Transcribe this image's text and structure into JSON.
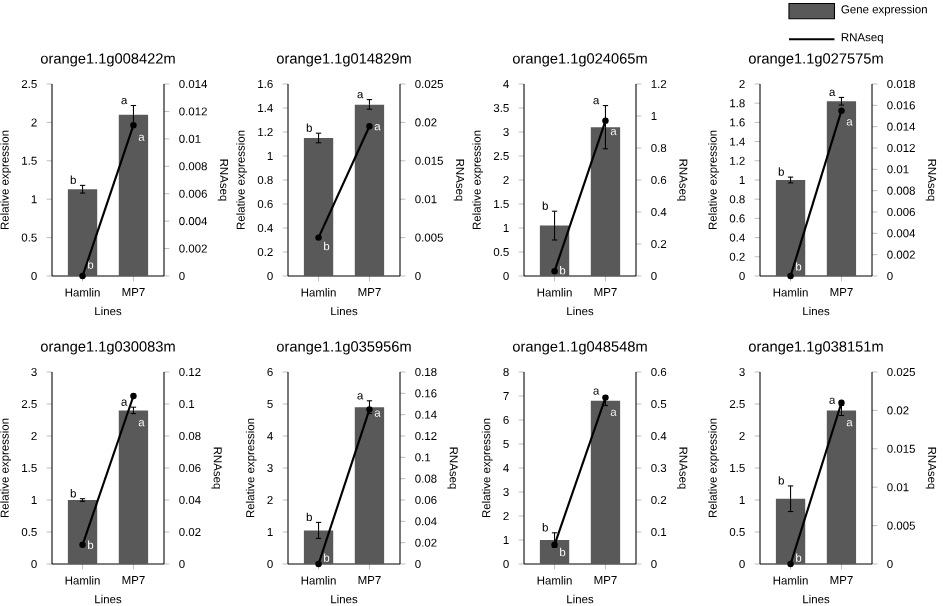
{
  "chart_data": [
    {
      "type": "bar",
      "title": "orange1.1g008422m",
      "categories": [
        "Hamlin",
        "MP7"
      ],
      "xlabel": "Lines",
      "ylabel": "Relative expression",
      "y2label": "RNAseq",
      "ylim": [
        0,
        2.5
      ],
      "yticks": [
        0,
        0.5,
        1,
        1.5,
        2,
        2.5
      ],
      "y2lim": [
        0,
        0.014
      ],
      "y2ticks": [
        0,
        0.002,
        0.004,
        0.006,
        0.008,
        0.01,
        0.012,
        0.014
      ],
      "marker": "circle",
      "series": [
        {
          "color": "#595959",
          "values": [
            1.13,
            2.1
          ],
          "errors": [
            0.05,
            0.12
          ]
        },
        {
          "type": "line",
          "axis": "y2",
          "color": "#000000",
          "values": [
            0,
            0.011
          ]
        }
      ],
      "annotations": [
        {
          "text": "b",
          "x": "Hamlin",
          "y": 1.18
        },
        {
          "text": "a",
          "x": "MP7",
          "y": 2.22
        },
        {
          "text": "b",
          "x": "Hamlin",
          "y": 0.15
        },
        {
          "text": "a",
          "x": "MP7",
          "y": 1.8
        }
      ]
    },
    {
      "type": "bar",
      "title": "orange1.1g014829m",
      "categories": [
        "Hamlin",
        "MP7"
      ],
      "xlabel": "Lines",
      "ylabel": "Relative expression",
      "y2label": "RNAseq",
      "ylim": [
        0,
        1.6
      ],
      "yticks": [
        0,
        0.2,
        0.4,
        0.6,
        0.8,
        1,
        1.2,
        1.4,
        1.6
      ],
      "y2lim": [
        0,
        0.025
      ],
      "y2ticks": [
        0,
        0.005,
        0.01,
        0.015,
        0.02,
        0.025
      ],
      "marker": "circle",
      "series": [
        {
          "color": "#595959",
          "values": [
            1.15,
            1.43
          ],
          "errors": [
            0.04,
            0.04
          ]
        },
        {
          "type": "line",
          "axis": "y2",
          "color": "#000000",
          "values": [
            0.005,
            0.0195
          ]
        }
      ],
      "annotations": [
        {
          "text": "b",
          "x": "Hamlin",
          "y": 1.19
        },
        {
          "text": "a",
          "x": "MP7",
          "y": 1.47
        },
        {
          "text": "b",
          "x": "Hamlin",
          "y": 0.25
        },
        {
          "text": "a",
          "x": "MP7",
          "y": 1.24
        }
      ]
    },
    {
      "type": "bar",
      "title": "orange1.1g024065m",
      "categories": [
        "Hamlin",
        "MP7"
      ],
      "xlabel": "Lines",
      "ylabel": "Relative expression",
      "y2label": "RNAseq",
      "ylim": [
        0,
        4
      ],
      "yticks": [
        0,
        0.5,
        1,
        1.5,
        2,
        2.5,
        3,
        3.5,
        4
      ],
      "y2lim": [
        0,
        1.2
      ],
      "y2ticks": [
        0,
        0.2,
        0.4,
        0.6,
        0.8,
        1,
        1.2
      ],
      "marker": "circle",
      "series": [
        {
          "color": "#595959",
          "values": [
            1.05,
            3.1
          ],
          "errors": [
            0.3,
            0.45
          ]
        },
        {
          "type": "line",
          "axis": "y2",
          "color": "#000000",
          "values": [
            0.03,
            0.97
          ]
        }
      ],
      "annotations": [
        {
          "text": "b",
          "x": "Hamlin",
          "y": 1.35
        },
        {
          "text": "a",
          "x": "MP7",
          "y": 3.55
        },
        {
          "text": "b",
          "x": "Hamlin",
          "y": 0.12
        },
        {
          "text": "a",
          "x": "MP7",
          "y": 3.0
        }
      ]
    },
    {
      "type": "bar",
      "title": "orange1.1g027575m",
      "categories": [
        "Hamlin",
        "MP7"
      ],
      "xlabel": "Lines",
      "ylabel": "Relative expression",
      "y2label": "RNAseq",
      "ylim": [
        0,
        2
      ],
      "yticks": [
        0,
        0.2,
        0.4,
        0.6,
        0.8,
        1,
        1.2,
        1.4,
        1.6,
        1.8,
        2
      ],
      "y2lim": [
        0,
        0.018
      ],
      "y2ticks": [
        0,
        0.002,
        0.004,
        0.006,
        0.008,
        0.01,
        0.012,
        0.014,
        0.016,
        0.018
      ],
      "marker": "circle",
      "legend": "top right",
      "series": [
        {
          "name": "Gene expression",
          "color": "#595959",
          "values": [
            1.0,
            1.82
          ],
          "errors": [
            0.03,
            0.04
          ]
        },
        {
          "name": "RNAseq",
          "type": "line",
          "axis": "y2",
          "color": "#000000",
          "values": [
            0,
            0.0155
          ]
        }
      ],
      "annotations": [
        {
          "text": "b",
          "x": "Hamlin",
          "y": 1.03
        },
        {
          "text": "a",
          "x": "MP7",
          "y": 1.86
        },
        {
          "text": "b",
          "x": "Hamlin",
          "y": 0.1
        },
        {
          "text": "a",
          "x": "MP7",
          "y": 1.6
        }
      ]
    },
    {
      "type": "bar",
      "title": "orange1.1g030083m",
      "categories": [
        "Hamlin",
        "MP7"
      ],
      "xlabel": "Lines",
      "ylabel": "Relative expression",
      "y2label": "RNAseq",
      "ylim": [
        0,
        3
      ],
      "yticks": [
        0,
        0.5,
        1,
        1.5,
        2,
        2.5,
        3
      ],
      "y2lim": [
        0,
        0.12
      ],
      "y2ticks": [
        0,
        0.02,
        0.04,
        0.06,
        0.08,
        0.1,
        0.12
      ],
      "marker": "circle",
      "series": [
        {
          "color": "#595959",
          "values": [
            1.0,
            2.4
          ],
          "errors": [
            0.02,
            0.05
          ]
        },
        {
          "type": "line",
          "axis": "y2",
          "color": "#000000",
          "values": [
            0.012,
            0.105
          ]
        }
      ],
      "annotations": [
        {
          "text": "b",
          "x": "Hamlin",
          "y": 1.02
        },
        {
          "text": "a",
          "x": "MP7",
          "y": 2.45
        },
        {
          "text": "b",
          "x": "Hamlin",
          "y": 0.3
        },
        {
          "text": "a",
          "x": "MP7",
          "y": 2.2
        }
      ]
    },
    {
      "type": "bar",
      "title": "orange1.1g035956m",
      "categories": [
        "Hamlin",
        "MP7"
      ],
      "xlabel": "Lines",
      "ylabel": "Relative expression",
      "y2label": "RNAseq",
      "ylim": [
        0,
        6
      ],
      "yticks": [
        0,
        1,
        2,
        3,
        4,
        5,
        6
      ],
      "y2lim": [
        0,
        0.18
      ],
      "y2ticks": [
        0,
        0.02,
        0.04,
        0.06,
        0.08,
        0.1,
        0.12,
        0.14,
        0.16,
        0.18
      ],
      "marker": "circle",
      "series": [
        {
          "color": "#595959",
          "values": [
            1.05,
            4.9
          ],
          "errors": [
            0.25,
            0.2
          ]
        },
        {
          "type": "line",
          "axis": "y2",
          "color": "#000000",
          "values": [
            0,
            0.145
          ]
        }
      ],
      "annotations": [
        {
          "text": "b",
          "x": "Hamlin",
          "y": 1.3
        },
        {
          "text": "a",
          "x": "MP7",
          "y": 5.1
        },
        {
          "text": "b",
          "x": "Hamlin",
          "y": 0.2
        },
        {
          "text": "a",
          "x": "MP7",
          "y": 4.7
        }
      ]
    },
    {
      "type": "bar",
      "title": "orange1.1g048548m",
      "categories": [
        "Hamlin",
        "MP7"
      ],
      "xlabel": "Lines",
      "ylabel": "Relative expression",
      "y2label": "RNAseq",
      "ylim": [
        0,
        8
      ],
      "yticks": [
        0,
        1,
        2,
        3,
        4,
        5,
        6,
        7,
        8
      ],
      "y2lim": [
        0,
        0.6
      ],
      "y2ticks": [
        0,
        0.1,
        0.2,
        0.3,
        0.4,
        0.5,
        0.6
      ],
      "marker": "circle",
      "series": [
        {
          "color": "#595959",
          "values": [
            1.0,
            6.8
          ],
          "errors": [
            0.3,
            0.2
          ]
        },
        {
          "type": "line",
          "axis": "y2",
          "color": "#000000",
          "values": [
            0.06,
            0.52
          ]
        }
      ],
      "annotations": [
        {
          "text": "b",
          "x": "Hamlin",
          "y": 1.3
        },
        {
          "text": "a",
          "x": "MP7",
          "y": 7.0
        },
        {
          "text": "b",
          "x": "Hamlin",
          "y": 0.5
        },
        {
          "text": "a",
          "x": "MP7",
          "y": 6.3
        }
      ]
    },
    {
      "type": "bar",
      "title": "orange1.1g038151m",
      "categories": [
        "Hamlin",
        "MP7"
      ],
      "xlabel": "Lines",
      "ylabel": "Relative expression",
      "y2label": "RNAseq",
      "ylim": [
        0,
        3
      ],
      "yticks": [
        0,
        0.5,
        1,
        1.5,
        2,
        2.5,
        3
      ],
      "y2lim": [
        0,
        0.025
      ],
      "y2ticks": [
        0,
        0.005,
        0.01,
        0.015,
        0.02,
        0.025
      ],
      "marker": "circle",
      "series": [
        {
          "color": "#595959",
          "values": [
            1.02,
            2.4
          ],
          "errors": [
            0.2,
            0.08
          ]
        },
        {
          "type": "line",
          "axis": "y2",
          "color": "#000000",
          "values": [
            0,
            0.021
          ]
        }
      ],
      "annotations": [
        {
          "text": "b",
          "x": "Hamlin",
          "y": 1.22
        },
        {
          "text": "a",
          "x": "MP7",
          "y": 2.48
        },
        {
          "text": "b",
          "x": "Hamlin",
          "y": 0.1
        },
        {
          "text": "a",
          "x": "MP7",
          "y": 2.2
        }
      ]
    }
  ]
}
